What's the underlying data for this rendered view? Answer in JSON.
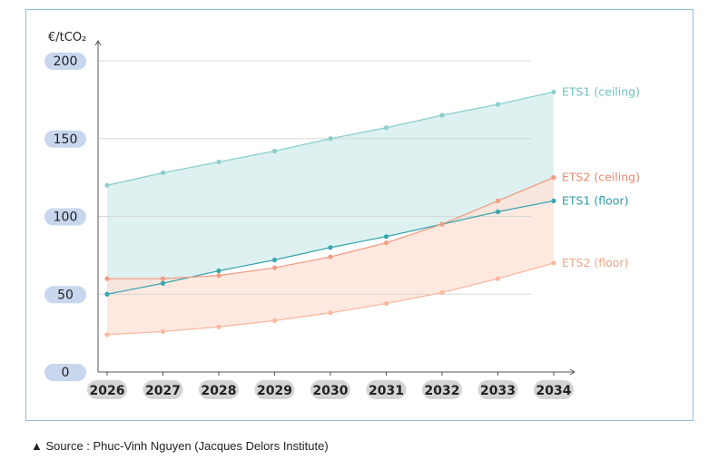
{
  "chart_data": {
    "type": "area",
    "ylabel": "€/tCO₂",
    "ylim": [
      0,
      200
    ],
    "yticks": [
      0,
      50,
      100,
      150,
      200
    ],
    "categories": [
      "2026",
      "2027",
      "2028",
      "2029",
      "2030",
      "2031",
      "2032",
      "2033",
      "2034"
    ],
    "grid": true,
    "series": [
      {
        "name": "ETS1 (ceiling)",
        "values": [
          120,
          128,
          135,
          142,
          150,
          157,
          165,
          172,
          180
        ],
        "color": "#8ccfcc"
      },
      {
        "name": "ETS1 (floor)",
        "values": [
          50,
          57,
          65,
          72,
          80,
          87,
          95,
          103,
          110
        ],
        "color": "#3aa6ac"
      },
      {
        "name": "ETS2 (ceiling)",
        "values": [
          60,
          60,
          62,
          67,
          74,
          83,
          95,
          110,
          125
        ],
        "color": "#ef9e86"
      },
      {
        "name": "ETS2 (floor)",
        "values": [
          24,
          26,
          29,
          33,
          38,
          44,
          51,
          60,
          70
        ],
        "color": "#f6b9a0"
      }
    ],
    "bands": [
      {
        "name": "ETS1 corridor",
        "upper": "ETS1 (ceiling)",
        "lower": "ETS1 (floor)",
        "fill": "#d2ecec"
      },
      {
        "name": "ETS2 corridor",
        "upper": "ETS2 (ceiling)",
        "lower": "ETS2 (floor)",
        "fill": "#fde1d6"
      }
    ]
  },
  "source_text": "▲ Source : Phuc-Vinh Nguyen (Jacques Delors Institute)"
}
